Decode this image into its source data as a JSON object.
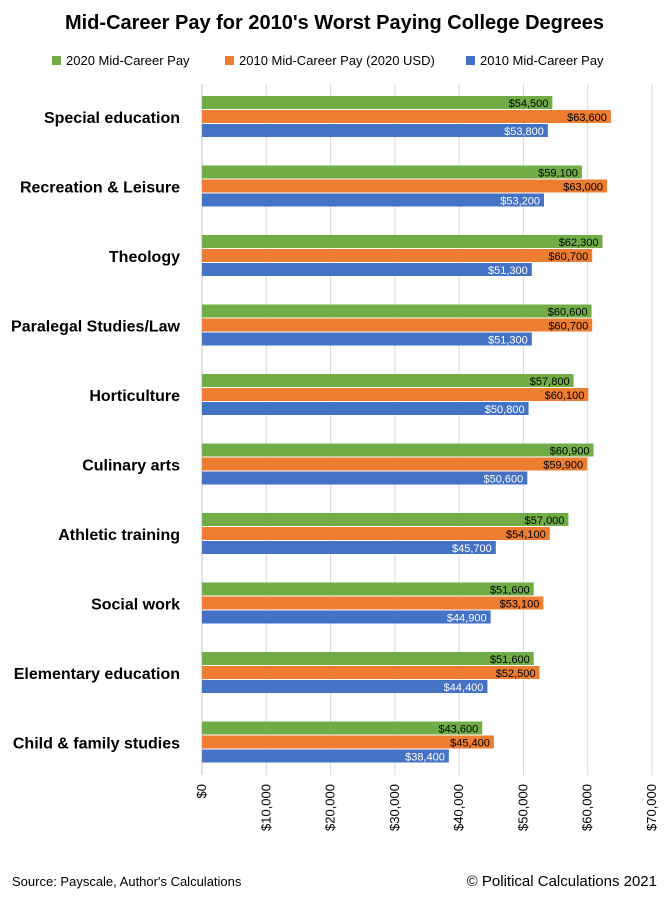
{
  "chart_data": {
    "type": "bar",
    "orientation": "horizontal",
    "title": "Mid-Career Pay for 2010's Worst Paying College Degrees",
    "categories": [
      "Special education",
      "Recreation & Leisure",
      "Theology",
      "Paralegal Studies/Law",
      "Horticulture",
      "Culinary arts",
      "Athletic training",
      "Social work",
      "Elementary education",
      "Child & family studies"
    ],
    "series": [
      {
        "name": "2020 Mid-Career Pay",
        "color": "#70ad47",
        "label_color": "#000000",
        "values": [
          54500,
          59100,
          62300,
          60600,
          57800,
          60900,
          57000,
          51600,
          51600,
          43600
        ],
        "labels": [
          "$54,500",
          "$59,100",
          "$62,300",
          "$60,600",
          "$57,800",
          "$60,900",
          "$57,000",
          "$51,600",
          "$51,600",
          "$43,600"
        ]
      },
      {
        "name": "2010 Mid-Career Pay (2020 USD)",
        "color": "#ed7d31",
        "label_color": "#000000",
        "values": [
          63600,
          63000,
          60700,
          60700,
          60100,
          59900,
          54100,
          53100,
          52500,
          45400
        ],
        "labels": [
          "$63,600",
          "$63,000",
          "$60,700",
          "$60,700",
          "$60,100",
          "$59,900",
          "$54,100",
          "$53,100",
          "$52,500",
          "$45,400"
        ]
      },
      {
        "name": "2010 Mid-Career Pay",
        "color": "#4472c4",
        "label_color": "#ffffff",
        "values": [
          53800,
          53200,
          51300,
          51300,
          50800,
          50600,
          45700,
          44900,
          44400,
          38400
        ],
        "labels": [
          "$53,800",
          "$53,200",
          "$51,300",
          "$51,300",
          "$50,800",
          "$50,600",
          "$45,700",
          "$44,900",
          "$44,400",
          "$38,400"
        ]
      }
    ],
    "xlim": [
      0,
      70000
    ],
    "ticks": [
      0,
      10000,
      20000,
      30000,
      40000,
      50000,
      60000,
      70000
    ],
    "tick_labels": [
      "$0",
      "$10,000",
      "$20,000",
      "$30,000",
      "$40,000",
      "$50,000",
      "$60,000",
      "$70,000"
    ],
    "grid": true,
    "legend_position": "top"
  },
  "footer": {
    "source": "Source: Payscale, Author's Calculations",
    "credit": "© Political Calculations 2021"
  }
}
